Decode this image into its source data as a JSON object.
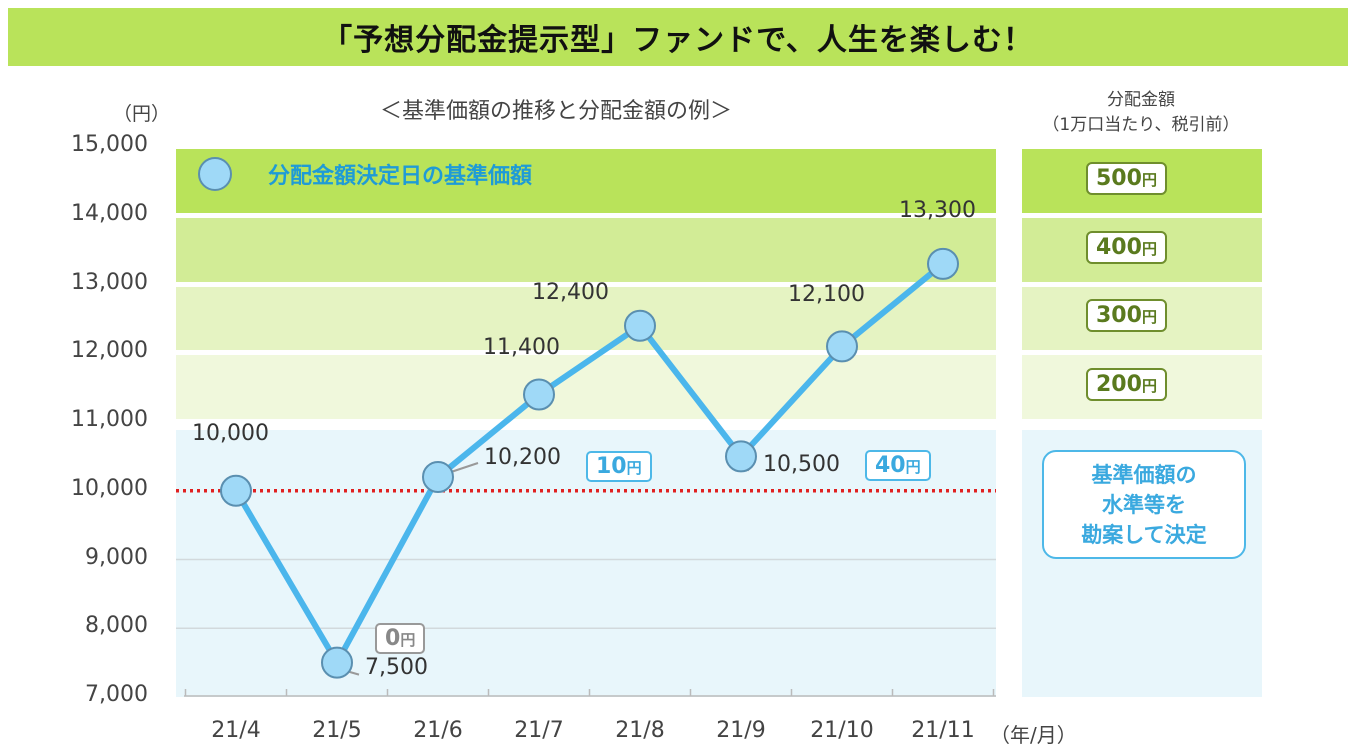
{
  "banner": {
    "title": "「予想分配金提示型」ファンドで、人生を楽しむ！"
  },
  "chart_data": {
    "type": "line",
    "title": "＜基準価額の推移と分配金額の例＞",
    "y_unit": "（円）",
    "x_unit": "（年/月）",
    "ylim": [
      7000,
      15000
    ],
    "y_ticks": [
      "15,000",
      "14,000",
      "13,000",
      "12,000",
      "11,000",
      "10,000",
      "9,000",
      "8,000",
      "7,000"
    ],
    "y_tick_values": [
      15000,
      14000,
      13000,
      12000,
      11000,
      10000,
      9000,
      8000,
      7000
    ],
    "categories": [
      "21/4",
      "21/5",
      "21/6",
      "21/7",
      "21/8",
      "21/9",
      "21/10",
      "21/11"
    ],
    "series": [
      {
        "name": "分配金額決定日の基準価額",
        "values": [
          10000,
          7500,
          10200,
          11400,
          12400,
          10500,
          12100,
          13300
        ]
      }
    ],
    "point_labels": [
      "10,000",
      "7,500",
      "10,200",
      "11,400",
      "12,400",
      "10,500",
      "12,100",
      "13,300"
    ],
    "reference_line": 10000,
    "distributions": [
      {
        "month": "21/5",
        "amount": "0",
        "yen": "円"
      },
      {
        "month": "21/6",
        "amount": "10",
        "yen": "円"
      },
      {
        "month": "21/9",
        "amount": "40",
        "yen": "円"
      }
    ],
    "colors": {
      "line": "#4bb6ec",
      "marker_fill": "#9fd9f7",
      "reference": "#e02020",
      "low_band": "#e8f6fb"
    }
  },
  "tiers": {
    "header_line1": "分配金額",
    "header_line2": "（1万口当たり、税引前）",
    "yen": "円",
    "levels": [
      {
        "amount": "500",
        "from": 14000,
        "to": 15000,
        "color": "#b9e35a"
      },
      {
        "amount": "400",
        "from": 13000,
        "to": 14000,
        "color": "#d2ec96"
      },
      {
        "amount": "300",
        "from": 12000,
        "to": 13000,
        "color": "#e5f3c2"
      },
      {
        "amount": "200",
        "from": 11000,
        "to": 12000,
        "color": "#f0f8dc"
      }
    ],
    "note": [
      "基準価額の",
      "水準等を",
      "勘案して決定"
    ]
  }
}
